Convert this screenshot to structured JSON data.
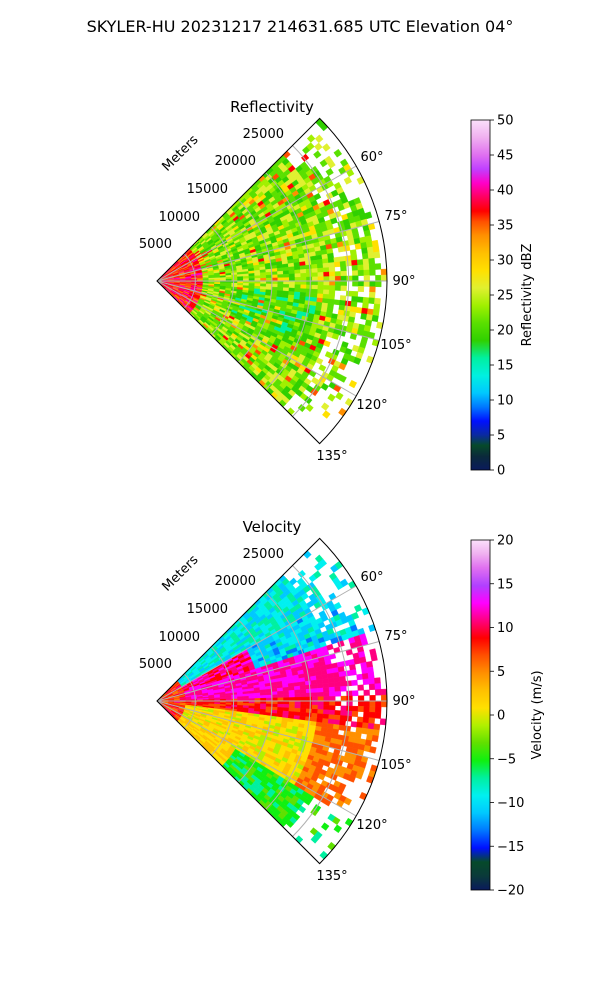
{
  "suptitle": "SKYLER-HU  20231217  214631.685 UTC Elevation 04°",
  "chart_data": [
    {
      "type": "heatmap",
      "title": "Reflectivity",
      "projection": "polar-sector",
      "azimuth_range_deg": [
        45,
        135
      ],
      "range_max_m": 30000,
      "range_label": "Meters",
      "range_ticks": [
        "5000",
        "10000",
        "15000",
        "20000",
        "25000"
      ],
      "range_tick_values": [
        5000,
        10000,
        15000,
        20000,
        25000
      ],
      "azimuth_ticks": [
        "60°",
        "75°",
        "90°",
        "105°",
        "120°",
        "135°"
      ],
      "azimuth_tick_values": [
        60,
        75,
        90,
        105,
        120,
        135
      ],
      "grid": true,
      "colorbar": {
        "label": "Reflectivity dBZ",
        "min": 0,
        "max": 50,
        "ticks": [
          "0",
          "5",
          "10",
          "15",
          "20",
          "25",
          "30",
          "35",
          "40",
          "45",
          "50"
        ],
        "tick_values": [
          0,
          5,
          10,
          15,
          20,
          25,
          30,
          35,
          40,
          45,
          50
        ],
        "colormap": "NWS reflectivity"
      },
      "field_summary": "Values about 20–30 dBZ across most of the sector; near-radar values about 35–40 dBZ; scattered cells about 35 dBZ"
    },
    {
      "type": "heatmap",
      "title": "Velocity",
      "projection": "polar-sector",
      "azimuth_range_deg": [
        45,
        135
      ],
      "range_max_m": 30000,
      "range_label": "Meters",
      "range_ticks": [
        "5000",
        "10000",
        "15000",
        "20000",
        "25000"
      ],
      "range_tick_values": [
        5000,
        10000,
        15000,
        20000,
        25000
      ],
      "azimuth_ticks": [
        "60°",
        "75°",
        "90°",
        "105°",
        "120°",
        "135°"
      ],
      "azimuth_tick_values": [
        60,
        75,
        90,
        105,
        120,
        135
      ],
      "grid": true,
      "colorbar": {
        "label": "Velocity (m/s)",
        "min": -20,
        "max": 20,
        "ticks": [
          "−20",
          "−15",
          "−10",
          "−5",
          "0",
          "5",
          "10",
          "15",
          "20"
        ],
        "tick_values": [
          -20,
          -15,
          -10,
          -5,
          0,
          5,
          10,
          15,
          20
        ],
        "colormap": "NWS velocity"
      },
      "field_summary": "About -10 to -5 m/s at azimuth 45–70°, 10–15 m/s around 80–95°, 0–5 m/s at 100–120°, -5 m/s near 130°"
    }
  ]
}
